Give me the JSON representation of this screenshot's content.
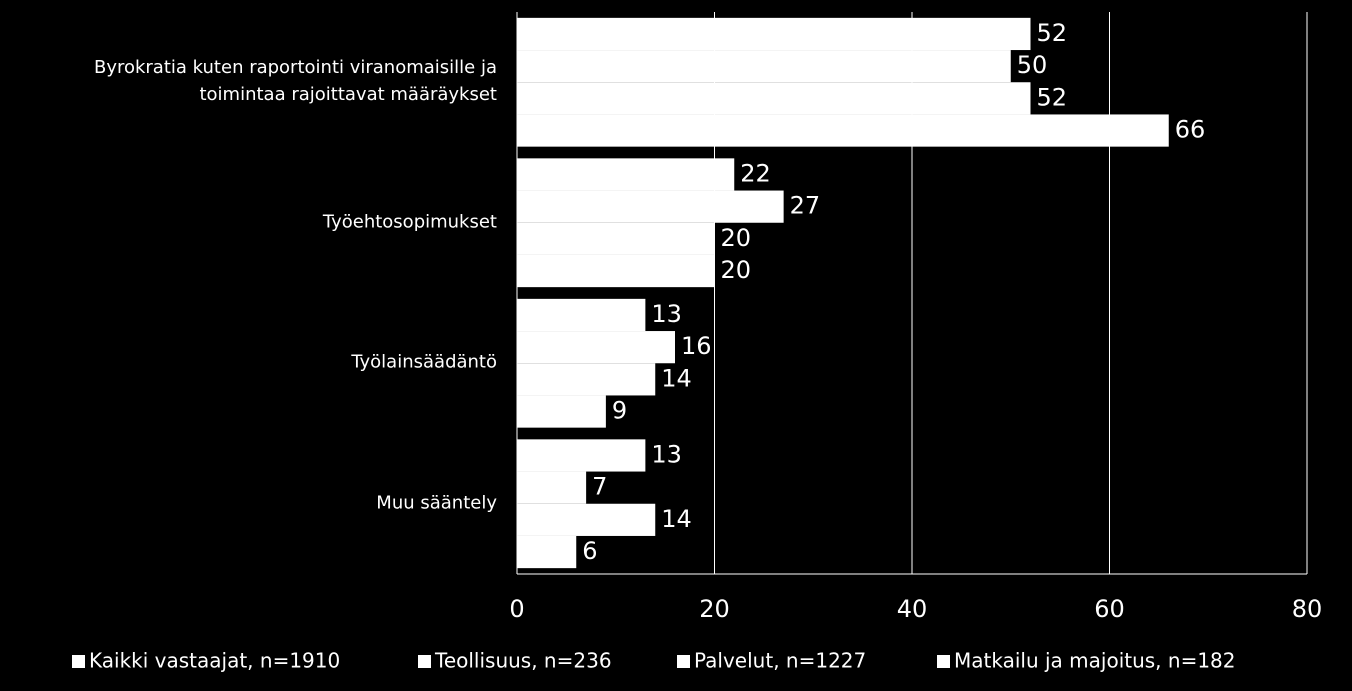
{
  "chart_data": {
    "type": "hbar",
    "categories": [
      "Byrokratia kuten raportointi viranomaisille ja toimintaa rajoittavat määräykset",
      "Työehtosopimukset",
      "Työlainsäädäntö",
      "Muu sääntely"
    ],
    "series": [
      {
        "name": "Kaikki vastaajat, n=1910",
        "color": "#ffffff",
        "values": [
          52,
          22,
          13,
          13
        ]
      },
      {
        "name": "Teollisuus, n=236",
        "color": "#ffffff",
        "values": [
          50,
          27,
          16,
          7
        ]
      },
      {
        "name": "Palvelut, n=1227",
        "color": "#ffffff",
        "values": [
          52,
          20,
          14,
          14
        ]
      },
      {
        "name": "Matkailu ja majoitus, n=182",
        "color": "#ffffff",
        "values": [
          66,
          20,
          9,
          6
        ]
      }
    ],
    "xlim": [
      0,
      80
    ],
    "xticks": [
      0,
      20,
      40,
      60,
      80
    ],
    "grid": true
  }
}
